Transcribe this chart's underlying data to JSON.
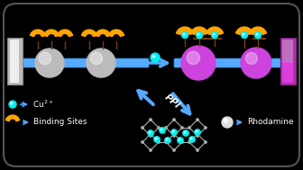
{
  "bg_color": "#000000",
  "cyan_color": "#00EFEF",
  "blue_arrow_color": "#55AAFF",
  "orange_color": "#FFA500",
  "brown_color": "#7B3A10",
  "gray_ball_color": "#BBBBBB",
  "magenta_ball_color": "#CC44DD",
  "white_ball_color": "#DDDDDD",
  "bar_color": "#55AAFF",
  "bar_edge": "#3388CC",
  "cuvette_left": "#C8C8C8",
  "cuvette_right_fill": "#CC44CC",
  "cuvette_right_top": "#EEAAEE",
  "label_cu": "Cu$^{2+}$",
  "label_binding": "Binding Sites",
  "label_rhodamine": "Rhodamine",
  "label_ppi": "PPi"
}
